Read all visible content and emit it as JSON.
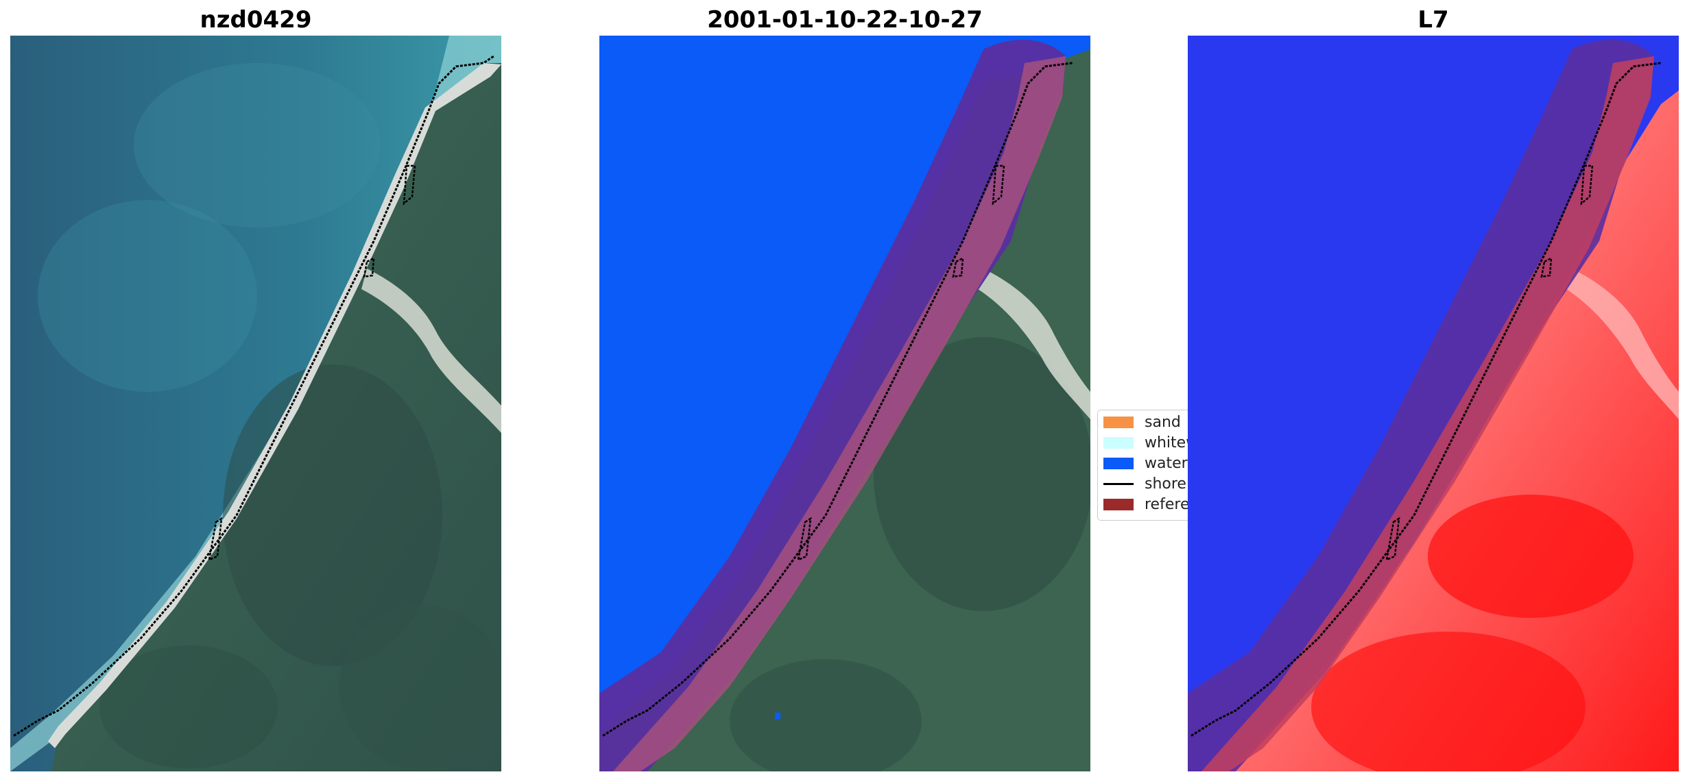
{
  "panels": [
    {
      "title": "nzd0429"
    },
    {
      "title": "2001-01-10-22-10-27"
    },
    {
      "title": "L7"
    }
  ],
  "legend": {
    "items": [
      {
        "label": "sand",
        "color": "#f79144",
        "kind": "patch"
      },
      {
        "label": "whitewater",
        "color": "#cbfefe",
        "kind": "patch"
      },
      {
        "label": "water",
        "color": "#0a5bf7",
        "kind": "patch"
      },
      {
        "label": "shoreline",
        "color": "#000000",
        "kind": "line"
      },
      {
        "label": "reference shoreline buffer",
        "color": "#9b2b2b",
        "kind": "patch"
      }
    ]
  },
  "colors": {
    "sea": "#2e7a92",
    "sea_deep": "#2a5f7c",
    "surf": "#a9dfe0",
    "beach": "#d8dcd8",
    "forest": "#3c6450",
    "forest_dark": "#2e4f45",
    "river": "#d5d8cf",
    "water_class": "#0a5bf7",
    "buffer_purple": "#5a2fa0",
    "buffer_pink": "#a5507e",
    "index_blue": "#2030f0",
    "index_red": "#ff1a1a",
    "index_pink": "#ff8f8f"
  }
}
